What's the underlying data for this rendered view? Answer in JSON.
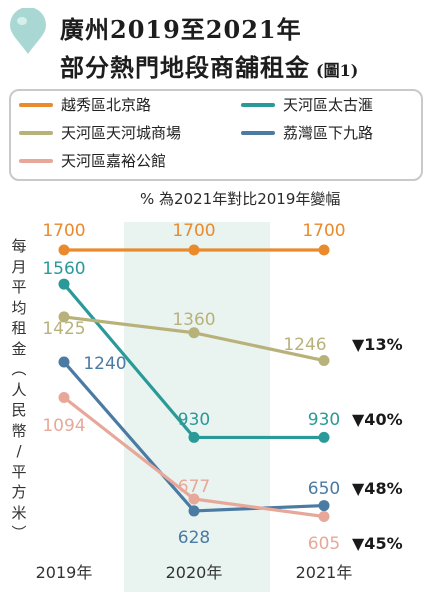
{
  "header": {
    "title_line1": "廣州2019至2021年",
    "title_line2": "部分熱門地段商舖租金",
    "figure_label": "(圖1)"
  },
  "legend": [
    {
      "label": "越秀區北京路",
      "color": "#e98a2c"
    },
    {
      "label": "天河區太古滙",
      "color": "#2a9a98"
    },
    {
      "label": "天河區天河城商場",
      "color": "#b8b27a"
    },
    {
      "label": "荔灣區下九路",
      "color": "#4b7aa3"
    },
    {
      "label": "天河區嘉裕公館",
      "color": "#e7a89a"
    }
  ],
  "note": "% 為2021年對比2019年變幅",
  "y_axis_chars": [
    "每",
    "月",
    "平",
    "均",
    "租",
    "金",
    "︵",
    "人",
    "民",
    "幣",
    "/",
    "平",
    "方",
    "米",
    "︶"
  ],
  "chart_data": {
    "type": "line",
    "x": [
      "2019年",
      "2020年",
      "2021年"
    ],
    "ylabel": "每月平均租金(人民幣/平方米)",
    "series": [
      {
        "name": "越秀區北京路",
        "color": "#e98a2c",
        "values": [
          1700,
          1700,
          1700
        ],
        "change": ""
      },
      {
        "name": "天河區太古滙",
        "color": "#2a9a98",
        "values": [
          1560,
          930,
          930
        ],
        "change": "▼40%"
      },
      {
        "name": "天河區天河城商場",
        "color": "#b8b27a",
        "values": [
          1425,
          1360,
          1246
        ],
        "change": "▼13%"
      },
      {
        "name": "荔灣區下九路",
        "color": "#4b7aa3",
        "values": [
          1240,
          628,
          650
        ],
        "change": "▼48%"
      },
      {
        "name": "天河區嘉裕公館",
        "color": "#e7a89a",
        "values": [
          1094,
          677,
          605
        ],
        "change": "▼45%"
      }
    ]
  }
}
